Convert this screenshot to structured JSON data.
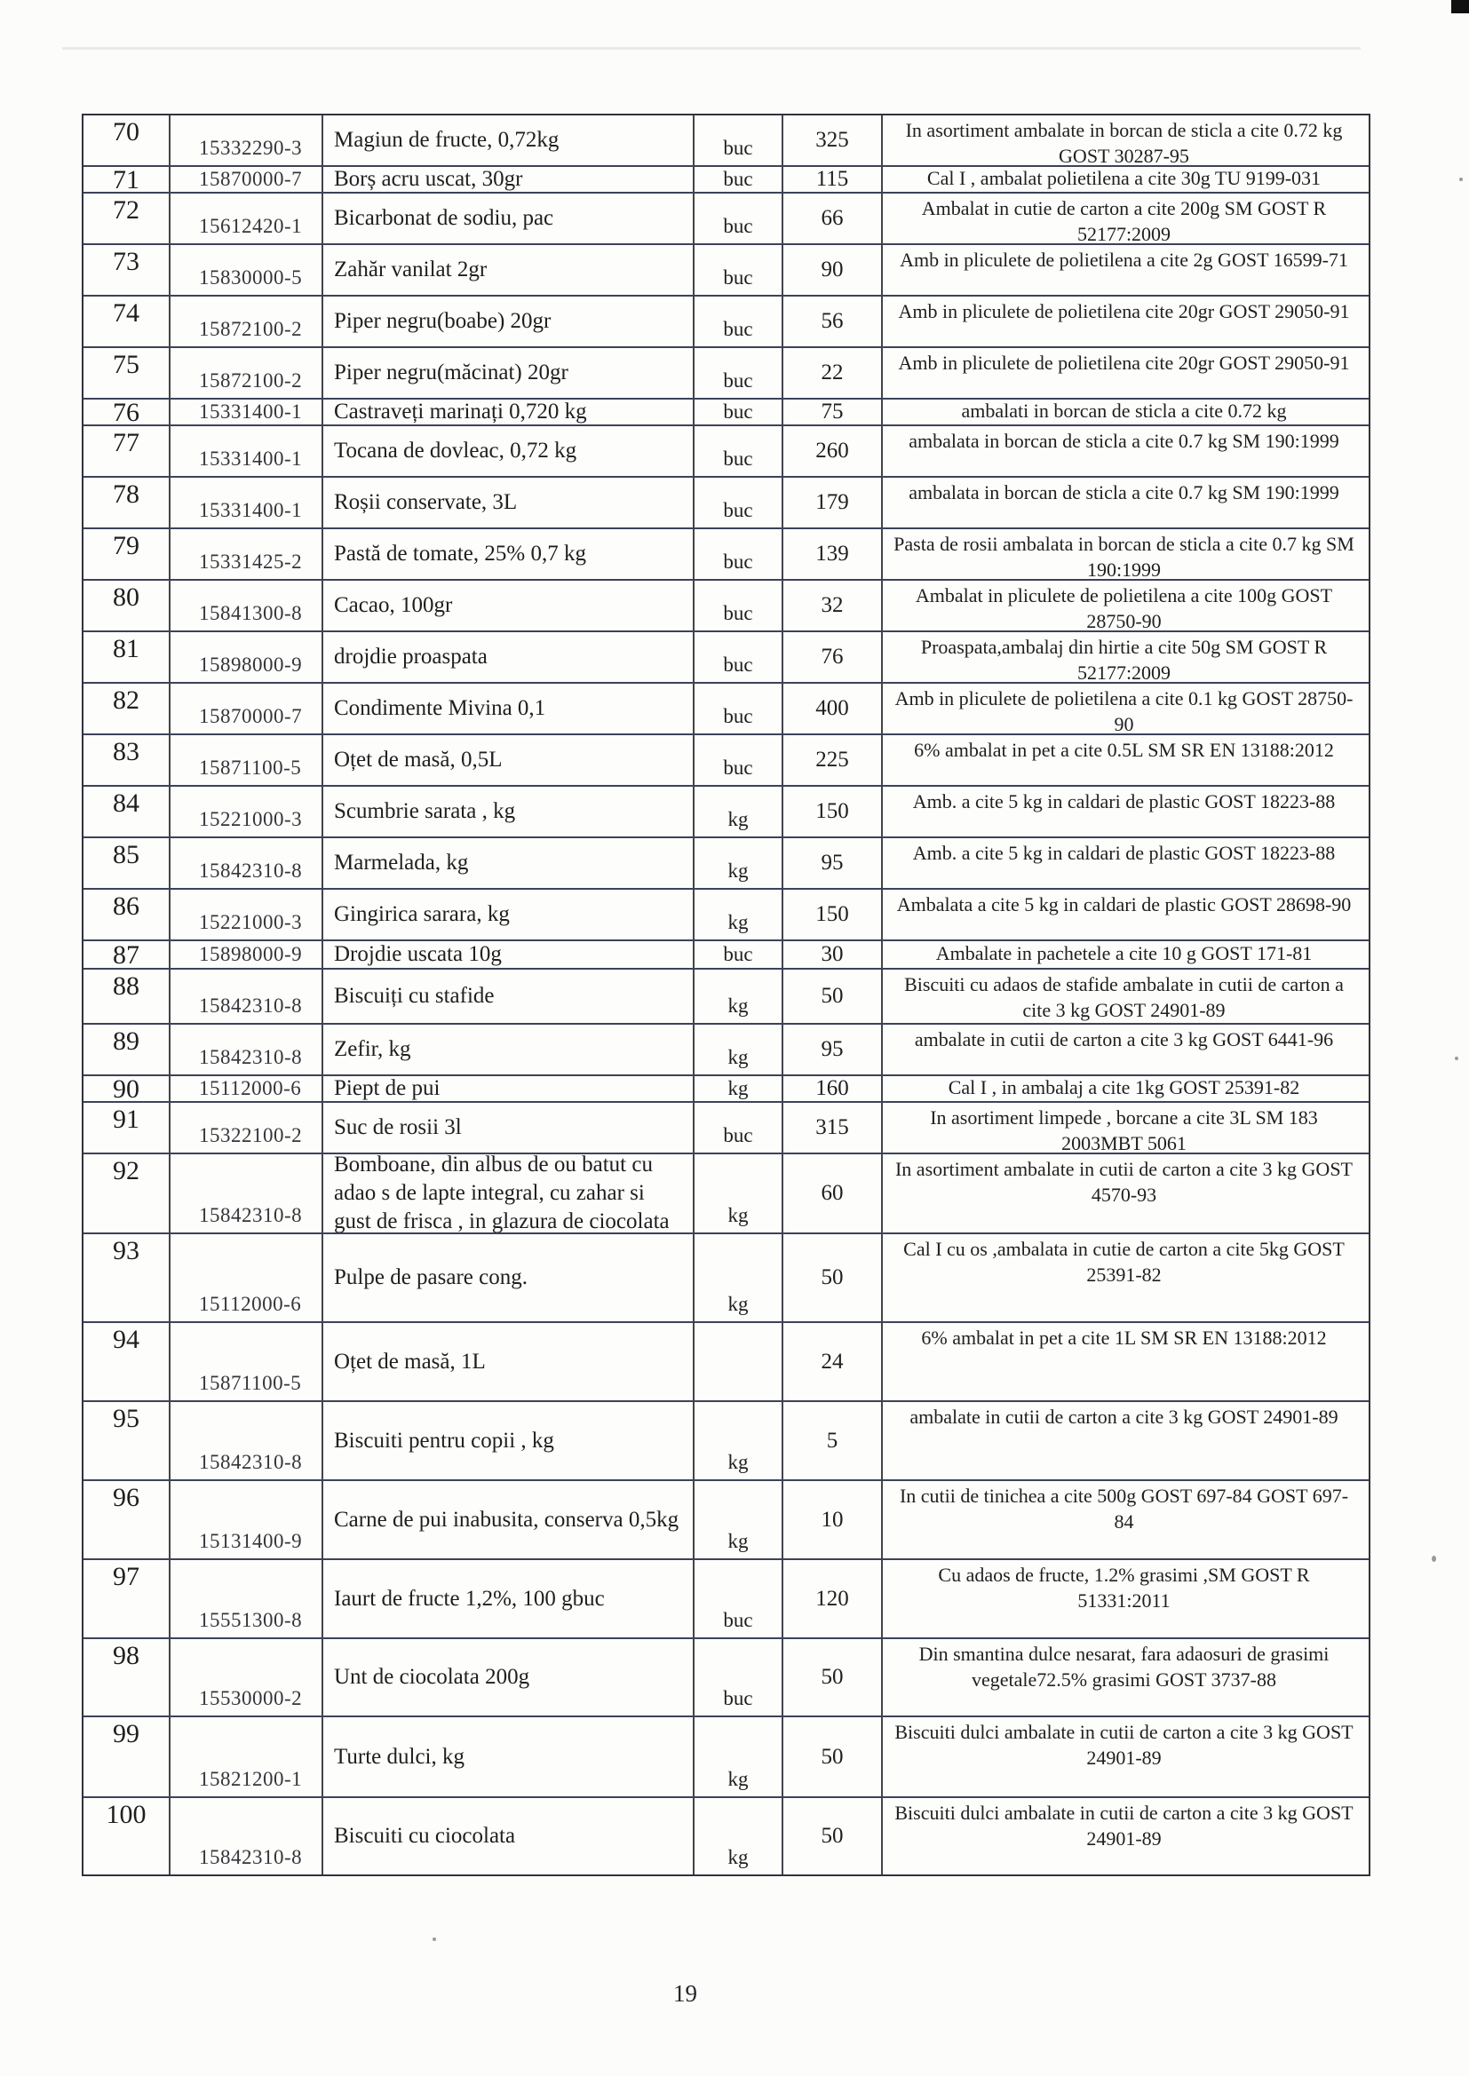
{
  "page": {
    "number": "19"
  },
  "table": {
    "rows": [
      {
        "no": "70",
        "code": "15332290-3",
        "name": "Magiun de fructe, 0,72kg",
        "unit": "buc",
        "qty": "325",
        "desc": "In asortiment ambalate in borcan de sticla a cite 0.72 kg GOST 30287-95",
        "size": "m"
      },
      {
        "no": "71",
        "code": "15870000-7",
        "name": "Borș acru uscat, 30gr",
        "unit": "buc",
        "qty": "115",
        "desc": "Cal I , ambalat polietilena a cite 30g TU 9199-031",
        "size": "s"
      },
      {
        "no": "72",
        "code": "15612420-1",
        "name": "Bicarbonat de sodiu, pac",
        "unit": "buc",
        "qty": "66",
        "desc": "Ambalat in cutie de carton a cite 200g SM GOST R 52177:2009",
        "size": "m"
      },
      {
        "no": "73",
        "code": "15830000-5",
        "name": "Zahăr vanilat 2gr",
        "unit": "buc",
        "qty": "90",
        "desc": "Amb in pliculete de polietilena a cite 2g GOST 16599-71",
        "size": "m"
      },
      {
        "no": "74",
        "code": "15872100-2",
        "name": "Piper negru(boabe) 20gr",
        "unit": "buc",
        "qty": "56",
        "desc": "Amb in pliculete de polietilena cite 20gr GOST 29050-91",
        "size": "m"
      },
      {
        "no": "75",
        "code": "15872100-2",
        "name": "Piper negru(măcinat) 20gr",
        "unit": "buc",
        "qty": "22",
        "desc": "Amb in pliculete de polietilena cite 20gr GOST 29050-91",
        "size": "m"
      },
      {
        "no": "76",
        "code": "15331400-1",
        "name": "Castraveți marinați 0,720 kg",
        "unit": "buc",
        "qty": "75",
        "desc": "ambalati in borcan de sticla a cite 0.72 kg",
        "size": "s"
      },
      {
        "no": "77",
        "code": "15331400-1",
        "name": "Tocana de dovleac, 0,72 kg",
        "unit": "buc",
        "qty": "260",
        "desc": "ambalata in borcan de sticla a cite 0.7 kg SM 190:1999",
        "size": "m"
      },
      {
        "no": "78",
        "code": "15331400-1",
        "name": "Roșii conservate, 3L",
        "unit": "buc",
        "qty": "179",
        "desc": "ambalata in borcan de sticla a cite 0.7 kg SM 190:1999",
        "size": "m"
      },
      {
        "no": "79",
        "code": "15331425-2",
        "name": "Pastă de tomate, 25% 0,7 kg",
        "unit": "buc",
        "qty": "139",
        "desc": "Pasta de rosii ambalata in borcan de sticla a cite 0.7 kg SM 190:1999",
        "size": "m"
      },
      {
        "no": "80",
        "code": "15841300-8",
        "name": "Cacao, 100gr",
        "unit": "buc",
        "qty": "32",
        "desc": "Ambalat in pliculete de polietilena a cite 100g GOST 28750-90",
        "size": "m"
      },
      {
        "no": "81",
        "code": "15898000-9",
        "name": "drojdie proaspata",
        "unit": "buc",
        "qty": "76",
        "desc": "Proaspata,ambalaj din hirtie a cite 50g SM GOST R 52177:2009",
        "size": "m"
      },
      {
        "no": "82",
        "code": "15870000-7",
        "name": "Condimente Mivina 0,1",
        "unit": "buc",
        "qty": "400",
        "desc": "Amb in pliculete de polietilena a cite 0.1 kg GOST 28750-90",
        "size": "m"
      },
      {
        "no": "83",
        "code": "15871100-5",
        "name": "Oțet de masă, 0,5L",
        "unit": "buc",
        "qty": "225",
        "desc": "6% ambalat in pet a cite 0.5L SM SR EN 13188:2012",
        "size": "m"
      },
      {
        "no": "84",
        "code": "15221000-3",
        "name": "Scumbrie sarata , kg",
        "unit": "kg",
        "qty": "150",
        "desc": "Amb. a cite 5 kg in caldari de plastic GOST 18223-88",
        "size": "m"
      },
      {
        "no": "85",
        "code": "15842310-8",
        "name": "Marmelada, kg",
        "unit": "kg",
        "qty": "95",
        "desc": "Amb. a cite 5 kg in caldari de plastic GOST 18223-88",
        "size": "m"
      },
      {
        "no": "86",
        "code": "15221000-3",
        "name": "Gingirica sarara, kg",
        "unit": "kg",
        "qty": "150",
        "desc": "Ambalata a cite 5 kg in caldari de plastic GOST 28698-90",
        "size": "m"
      },
      {
        "no": "87",
        "code": "15898000-9",
        "name": "Drojdie uscata 10g",
        "unit": "buc",
        "qty": "30",
        "desc": "Ambalate in pachetele a cite 10 g GOST 171-81",
        "size": "s"
      },
      {
        "no": "88",
        "code": "15842310-8",
        "name": "Biscuiți cu stafide",
        "unit": "kg",
        "qty": "50",
        "desc": "Biscuiti cu adaos de stafide ambalate in cutii de carton a cite 3 kg GOST 24901-89",
        "size": "m"
      },
      {
        "no": "89",
        "code": "15842310-8",
        "name": "Zefir, kg",
        "unit": "kg",
        "qty": "95",
        "desc": "ambalate in cutii de carton a cite 3 kg GOST 6441-96",
        "size": "m"
      },
      {
        "no": "90",
        "code": "15112000-6",
        "name": "Piept de pui",
        "unit": "kg",
        "qty": "160",
        "desc": "Cal I  , in ambalaj a cite 1kg GOST 25391-82",
        "size": "s"
      },
      {
        "no": "91",
        "code": "15322100-2",
        "name": "Suc de rosii 3l",
        "unit": "buc",
        "qty": "315",
        "desc": "In asortiment limpede , borcane a cite 3L SM 183 2003MBT 5061",
        "size": "m"
      },
      {
        "no": "92",
        "code": "15842310-8",
        "name": "Bomboane, din albus de ou batut cu adao s de lapte integral, cu zahar si gust de frisca , in glazura de ciocolata",
        "unit": "kg",
        "qty": "60",
        "desc": "In asortiment ambalate in cutii de carton a cite 3 kg GOST 4570-93",
        "size": "l"
      },
      {
        "no": "93",
        "code": "15112000-6",
        "name": "Pulpe de pasare cong.",
        "unit": "kg",
        "qty": "50",
        "desc": "Cal I cu os ,ambalata in cutie de carton a cite 5kg GOST 25391-82",
        "size": "l"
      },
      {
        "no": "94",
        "code": "15871100-5",
        "name": "Oțet de masă, 1L",
        "unit": "",
        "qty": "24",
        "desc": "6% ambalat in pet a cite 1L SM SR EN 13188:2012",
        "size": "l"
      },
      {
        "no": "95",
        "code": "15842310-8",
        "name": "Biscuiti pentru copii , kg",
        "unit": "kg",
        "qty": "5",
        "desc": "ambalate in cutii de carton a cite 3 kg GOST 24901-89",
        "size": "l"
      },
      {
        "no": "96",
        "code": "15131400-9",
        "name": "Carne de pui inabusita, conserva 0,5kg",
        "unit": "kg",
        "qty": "10",
        "desc": "In cutii de tinichea a cite 500g GOST 697-84 GOST 697-84",
        "size": "l"
      },
      {
        "no": "97",
        "code": "15551300-8",
        "name": "Iaurt de fructe 1,2%, 100 gbuc",
        "unit": "buc",
        "qty": "120",
        "desc": "Cu adaos de fructe, 1.2% grasimi ,SM GOST R 51331:2011",
        "size": "l"
      },
      {
        "no": "98",
        "code": "15530000-2",
        "name": "Unt de ciocolata 200g",
        "unit": "buc",
        "qty": "50",
        "desc": "Din smantina dulce nesarat, fara adaosuri de grasimi vegetale72.5% grasimi GOST 3737-88",
        "size": "l"
      },
      {
        "no": "99",
        "code": "15821200-1",
        "name": "Turte dulci, kg",
        "unit": "kg",
        "qty": "50",
        "desc": "Biscuiti dulci ambalate in cutii de carton a cite 3 kg GOST 24901-89",
        "size": "l"
      },
      {
        "no": "100",
        "code": "15842310-8",
        "name": "Biscuiti cu ciocolata",
        "unit": "kg",
        "qty": "50",
        "desc": "Biscuiti dulci ambalate in cutii de carton a cite 3 kg GOST 24901-89",
        "size": "l"
      }
    ]
  }
}
